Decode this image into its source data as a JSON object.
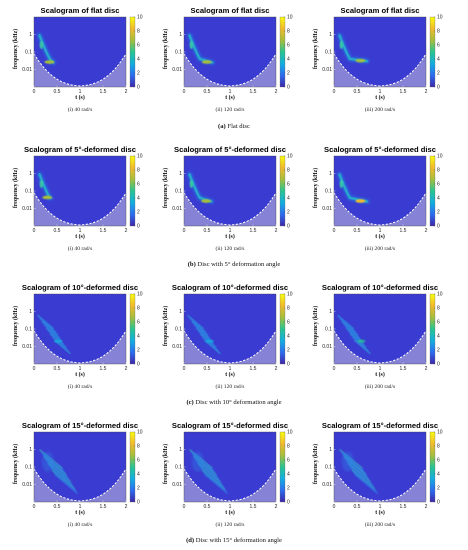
{
  "colors": {
    "background_field": "#3a3bd0",
    "cone_region": "#8a87d6",
    "cone_line": "#ffffff",
    "colorbar": [
      "#3e26a8",
      "#2c6cf0",
      "#13aee0",
      "#28c491",
      "#a5be3c",
      "#f0ba2e",
      "#f9fb0e"
    ]
  },
  "chart_data": {
    "type": "heatmap",
    "xlabel": "t (s)",
    "ylabel": "frequency (kHz)",
    "xlim": [
      0,
      2
    ],
    "xticks": [
      "0",
      "0.5",
      "1",
      "1.5",
      "2"
    ],
    "yscale": "log",
    "yticks": [
      "1",
      "0.1",
      "0.01"
    ],
    "colorbar_ticks": [
      "10",
      "8",
      "6",
      "4",
      "2",
      "0"
    ],
    "clim": [
      0,
      10
    ],
    "rows": [
      {
        "caption_label": "(a)",
        "caption_text": "Flat disc",
        "panels": [
          {
            "title": "Scalogram of flat disc",
            "sublabel": "(i) 40 rad/s",
            "ridge_t_end": 0.42,
            "ridge_peak_freq": 0.025,
            "peak_intensity": 6,
            "pattern": "ridge"
          },
          {
            "title": "Scalogram of flat disc",
            "sublabel": "(ii) 120 rad/s",
            "ridge_t_end": 0.62,
            "ridge_peak_freq": 0.025,
            "peak_intensity": 6,
            "pattern": "ridge"
          },
          {
            "title": "Scalogram of flat disc",
            "sublabel": "(iii) 200 rad/s",
            "ridge_t_end": 0.72,
            "ridge_peak_freq": 0.03,
            "peak_intensity": 6,
            "pattern": "ridge"
          }
        ]
      },
      {
        "caption_label": "(b)",
        "caption_text": "Disc with 5° deformation angle",
        "panels": [
          {
            "title": "Scalogram of 5°-deformed disc",
            "sublabel": "(i) 40 rad/s",
            "ridge_t_end": 0.36,
            "ridge_peak_freq": 0.04,
            "peak_intensity": 7,
            "pattern": "ridge"
          },
          {
            "title": "Scalogram of 5°-deformed disc",
            "sublabel": "(ii) 120 rad/s",
            "ridge_t_end": 0.6,
            "ridge_peak_freq": 0.025,
            "peak_intensity": 6,
            "pattern": "ridge"
          },
          {
            "title": "Scalogram of 5°-deformed disc",
            "sublabel": "(iii) 200 rad/s",
            "ridge_t_end": 0.72,
            "ridge_peak_freq": 0.025,
            "peak_intensity": 9,
            "pattern": "ridge"
          }
        ]
      },
      {
        "caption_label": "(c)",
        "caption_text": "Disc with 10° deformation angle",
        "panels": [
          {
            "title": "Scalogram of 10°-deformed disc",
            "sublabel": "(i) 40 rad/s",
            "ridge_t_end": 0.75,
            "ridge_peak_freq": 0.02,
            "peak_intensity": 4,
            "pattern": "streaks"
          },
          {
            "title": "Scalogram of 10°-deformed disc",
            "sublabel": "(ii) 120 rad/s",
            "ridge_t_end": 0.8,
            "ridge_peak_freq": 0.02,
            "peak_intensity": 4,
            "pattern": "streaks"
          },
          {
            "title": "Scalogram of 10°-deformed disc",
            "sublabel": "(iii) 200 rad/s",
            "ridge_t_end": 0.85,
            "ridge_peak_freq": 0.02,
            "peak_intensity": 5,
            "pattern": "streaks"
          }
        ]
      },
      {
        "caption_label": "(d)",
        "caption_text": "Disc with 15° deformation angle",
        "panels": [
          {
            "title": "Scalogram of 15°-deformed disc",
            "sublabel": "(i) 40 rad/s",
            "ridge_t_end": 1.0,
            "ridge_peak_freq": 0.02,
            "peak_intensity": 5,
            "pattern": "fan"
          },
          {
            "title": "Scalogram of 15°-deformed disc",
            "sublabel": "(ii) 120 rad/s",
            "ridge_t_end": 1.0,
            "ridge_peak_freq": 0.02,
            "peak_intensity": 4,
            "pattern": "fan"
          },
          {
            "title": "Scalogram of 15°-deformed disc",
            "sublabel": "(iii) 200 rad/s",
            "ridge_t_end": 1.0,
            "ridge_peak_freq": 0.02,
            "peak_intensity": 4,
            "pattern": "fan"
          }
        ]
      }
    ]
  }
}
